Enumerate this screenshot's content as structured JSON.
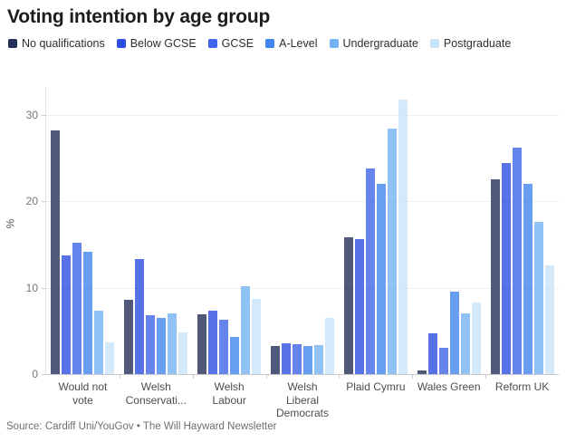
{
  "title": "Voting intention by age group",
  "source": "Source: Cardiff Uni/YouGov • The Will Hayward Newsletter",
  "y_axis_label": "%",
  "chart_data": {
    "type": "bar",
    "title": "Voting intention by age group",
    "xlabel": "",
    "ylabel": "%",
    "ylim": [
      0,
      33.2
    ],
    "yticks": [
      0,
      10,
      20,
      30
    ],
    "grid": "horizontal",
    "legend_position": "top",
    "bar_opacity": 0.8,
    "categories": [
      "Would not vote",
      "Welsh Conservative",
      "Welsh Labour",
      "Welsh Liberal Democrats",
      "Plaid Cymru",
      "Wales Green",
      "Reform UK"
    ],
    "category_display_lines": [
      [
        "Would not",
        "vote"
      ],
      [
        "Welsh",
        "Conservati..."
      ],
      [
        "Welsh",
        "Labour"
      ],
      [
        "Welsh",
        "Liberal",
        "Democrats"
      ],
      [
        "Plaid Cymru"
      ],
      [
        "Wales Green"
      ],
      [
        "Reform UK"
      ]
    ],
    "series": [
      {
        "name": "No qualifications",
        "color": "#243059",
        "values": [
          28.2,
          8.6,
          6.9,
          3.2,
          15.8,
          0.4,
          22.5
        ]
      },
      {
        "name": "Below GCSE",
        "color": "#2d4de0",
        "values": [
          13.7,
          13.3,
          7.3,
          3.6,
          15.6,
          4.7,
          24.4
        ]
      },
      {
        "name": "GCSE",
        "color": "#3f66e8",
        "values": [
          15.2,
          6.8,
          6.3,
          3.5,
          23.8,
          3.0,
          26.2
        ]
      },
      {
        "name": "A-Level",
        "color": "#4186ed",
        "values": [
          14.1,
          6.5,
          4.3,
          3.3,
          22.0,
          9.5,
          22.0
        ]
      },
      {
        "name": "Undergraduate",
        "color": "#74b3f3",
        "values": [
          7.3,
          7.0,
          10.2,
          3.4,
          28.4,
          7.0,
          17.6
        ]
      },
      {
        "name": "Postgraduate",
        "color": "#c9e3f8",
        "values": [
          3.7,
          4.8,
          8.7,
          6.5,
          31.7,
          8.3,
          12.6
        ]
      }
    ]
  }
}
